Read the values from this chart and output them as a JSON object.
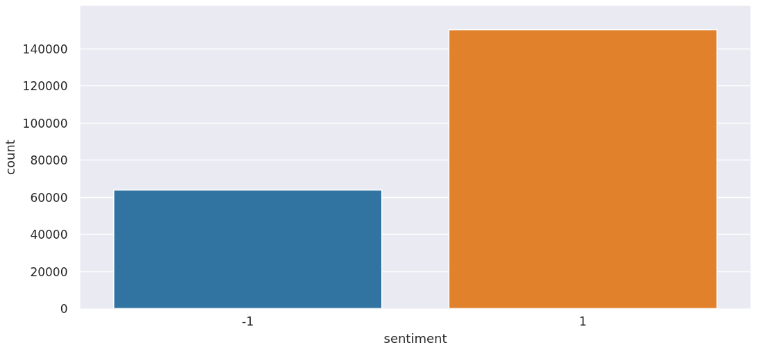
{
  "chart_data": {
    "type": "bar",
    "xlabel": "sentiment",
    "ylabel": "count",
    "categories": [
      "-1",
      "1"
    ],
    "values": [
      63800,
      150200
    ],
    "colors": [
      "#3274a1",
      "#e1812c"
    ],
    "ylim": [
      0,
      163000
    ],
    "yticks": [
      0,
      20000,
      40000,
      60000,
      80000,
      100000,
      120000,
      140000
    ],
    "grid": "y"
  }
}
